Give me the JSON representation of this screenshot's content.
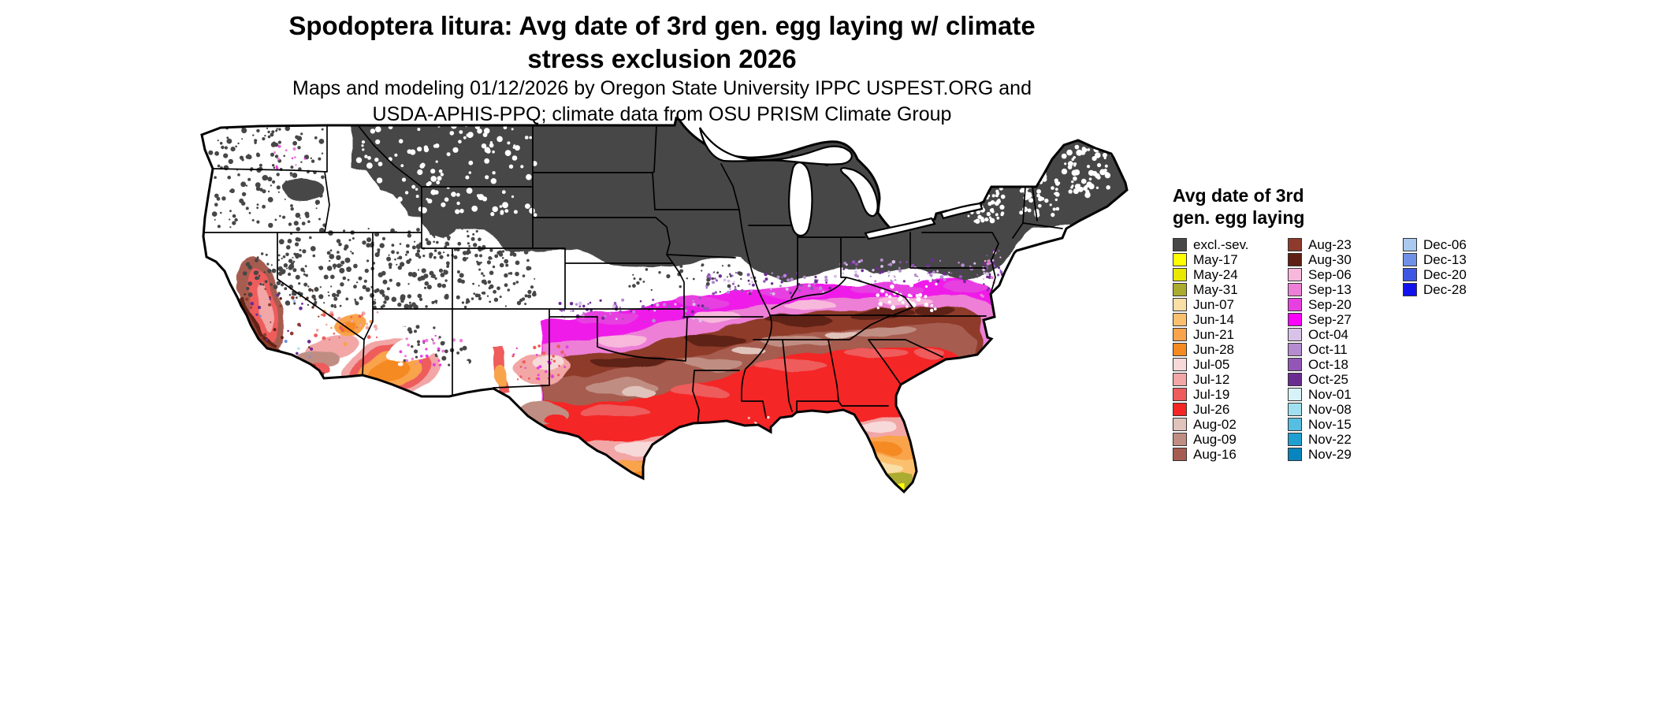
{
  "title": {
    "line1": "Spodoptera litura: Avg date of 3rd gen. egg laying w/ climate",
    "line2": "stress exclusion 2026"
  },
  "subtitle": {
    "line1": "Maps and modeling 01/12/2026 by Oregon State University IPPC USPEST.ORG and",
    "line2": "USDA-APHIS-PPQ; climate data from OSU PRISM Climate Group"
  },
  "legend": {
    "title_line1": "Avg date of 3rd",
    "title_line2": "gen. egg laying",
    "columns": [
      [
        {
          "label": "excl.-sev.",
          "color": "#474747"
        },
        {
          "label": "May-17",
          "color": "#FFFF00"
        },
        {
          "label": "May-24",
          "color": "#E8E800"
        },
        {
          "label": "May-31",
          "color": "#ABAB30"
        },
        {
          "label": "Jun-07",
          "color": "#F9DEA6"
        },
        {
          "label": "Jun-14",
          "color": "#FBC06E"
        },
        {
          "label": "Jun-21",
          "color": "#F9A34C"
        },
        {
          "label": "Jun-28",
          "color": "#F58A22"
        },
        {
          "label": "Jul-05",
          "color": "#F8D9D9"
        },
        {
          "label": "Jul-12",
          "color": "#F2A6A6"
        },
        {
          "label": "Jul-19",
          "color": "#EE5C5C"
        },
        {
          "label": "Jul-26",
          "color": "#F52525"
        },
        {
          "label": "Aug-02",
          "color": "#E0C3BA"
        },
        {
          "label": "Aug-09",
          "color": "#C08D82"
        },
        {
          "label": "Aug-16",
          "color": "#A65C50"
        }
      ],
      [
        {
          "label": "Aug-23",
          "color": "#8E3A2C"
        },
        {
          "label": "Aug-30",
          "color": "#5E2014"
        },
        {
          "label": "Sep-06",
          "color": "#F7B8DC"
        },
        {
          "label": "Sep-13",
          "color": "#ED7FD6"
        },
        {
          "label": "Sep-20",
          "color": "#E740E0"
        },
        {
          "label": "Sep-27",
          "color": "#FF00FF"
        },
        {
          "label": "Oct-04",
          "color": "#D9C2E8"
        },
        {
          "label": "Oct-11",
          "color": "#B48CCF"
        },
        {
          "label": "Oct-18",
          "color": "#9356B6"
        },
        {
          "label": "Oct-25",
          "color": "#6B2C92"
        },
        {
          "label": "Nov-01",
          "color": "#D7F3F9"
        },
        {
          "label": "Nov-08",
          "color": "#A0E0F0"
        },
        {
          "label": "Nov-15",
          "color": "#56BEE0"
        },
        {
          "label": "Nov-22",
          "color": "#20A0D0"
        },
        {
          "label": "Nov-29",
          "color": "#0884BE"
        }
      ],
      [
        {
          "label": "Dec-06",
          "color": "#A9C9EF"
        },
        {
          "label": "Dec-13",
          "color": "#7090E8"
        },
        {
          "label": "Dec-20",
          "color": "#3E57E2"
        },
        {
          "label": "Dec-28",
          "color": "#1212EE"
        }
      ]
    ]
  }
}
